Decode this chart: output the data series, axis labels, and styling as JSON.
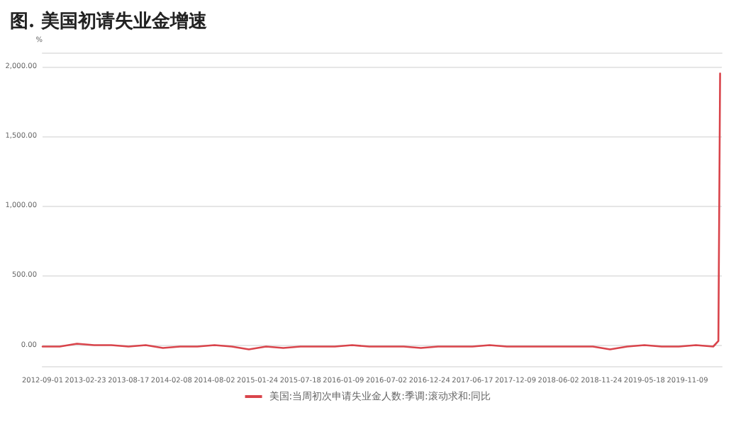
{
  "chart_data": {
    "type": "line",
    "title": "图. 美国初请失业金增速",
    "ylabel": "%",
    "x": [
      "2012-09-01",
      "2012-11-10",
      "2013-01-19",
      "2013-03-30",
      "2013-06-08",
      "2013-08-17",
      "2013-10-26",
      "2014-01-04",
      "2014-03-15",
      "2014-05-24",
      "2014-08-02",
      "2014-10-11",
      "2014-12-20",
      "2015-02-28",
      "2015-05-09",
      "2015-07-18",
      "2015-09-26",
      "2015-12-05",
      "2016-02-13",
      "2016-04-23",
      "2016-07-02",
      "2016-09-10",
      "2016-11-19",
      "2017-01-28",
      "2017-04-08",
      "2017-06-17",
      "2017-08-26",
      "2017-11-04",
      "2018-01-13",
      "2018-03-24",
      "2018-06-02",
      "2018-08-11",
      "2018-10-20",
      "2018-12-29",
      "2019-03-09",
      "2019-05-18",
      "2019-07-27",
      "2019-10-05",
      "2019-12-14",
      "2020-02-22",
      "2020-03-14",
      "2020-03-21"
    ],
    "series": [
      {
        "name": "美国:当周初次申请失业金人数:季调:滚动求和:同比",
        "color": "#d9444b",
        "values": [
          -10,
          -10,
          10,
          0,
          0,
          -10,
          0,
          -20,
          -10,
          -10,
          0,
          -10,
          -30,
          -10,
          -20,
          -10,
          -10,
          -10,
          0,
          -10,
          -10,
          -10,
          -20,
          -10,
          -10,
          -10,
          0,
          -10,
          -10,
          -10,
          -10,
          -10,
          -10,
          -30,
          -10,
          0,
          -10,
          -10,
          0,
          -10,
          30,
          1950
        ]
      }
    ],
    "xlim": [
      "2012-09-01",
      "2020-03-28"
    ],
    "xticks": [
      "2012-09-01",
      "2013-02-23",
      "2013-08-17",
      "2014-02-08",
      "2014-08-02",
      "2015-01-24",
      "2015-07-18",
      "2016-01-09",
      "2016-07-02",
      "2016-12-24",
      "2017-06-17",
      "2017-12-09",
      "2018-06-02",
      "2018-11-24",
      "2019-05-18",
      "2019-11-09"
    ],
    "ylim": [
      -150,
      2100
    ],
    "yticks": [
      {
        "value": 0,
        "label": "0.00"
      },
      {
        "value": 500,
        "label": "500.00"
      },
      {
        "value": 1000,
        "label": "1,000.00"
      },
      {
        "value": 1500,
        "label": "1,500.00"
      },
      {
        "value": 2000,
        "label": "2,000.00"
      }
    ],
    "grid": "y",
    "legend": "bottom",
    "marker": "none",
    "line_style": "solid"
  }
}
